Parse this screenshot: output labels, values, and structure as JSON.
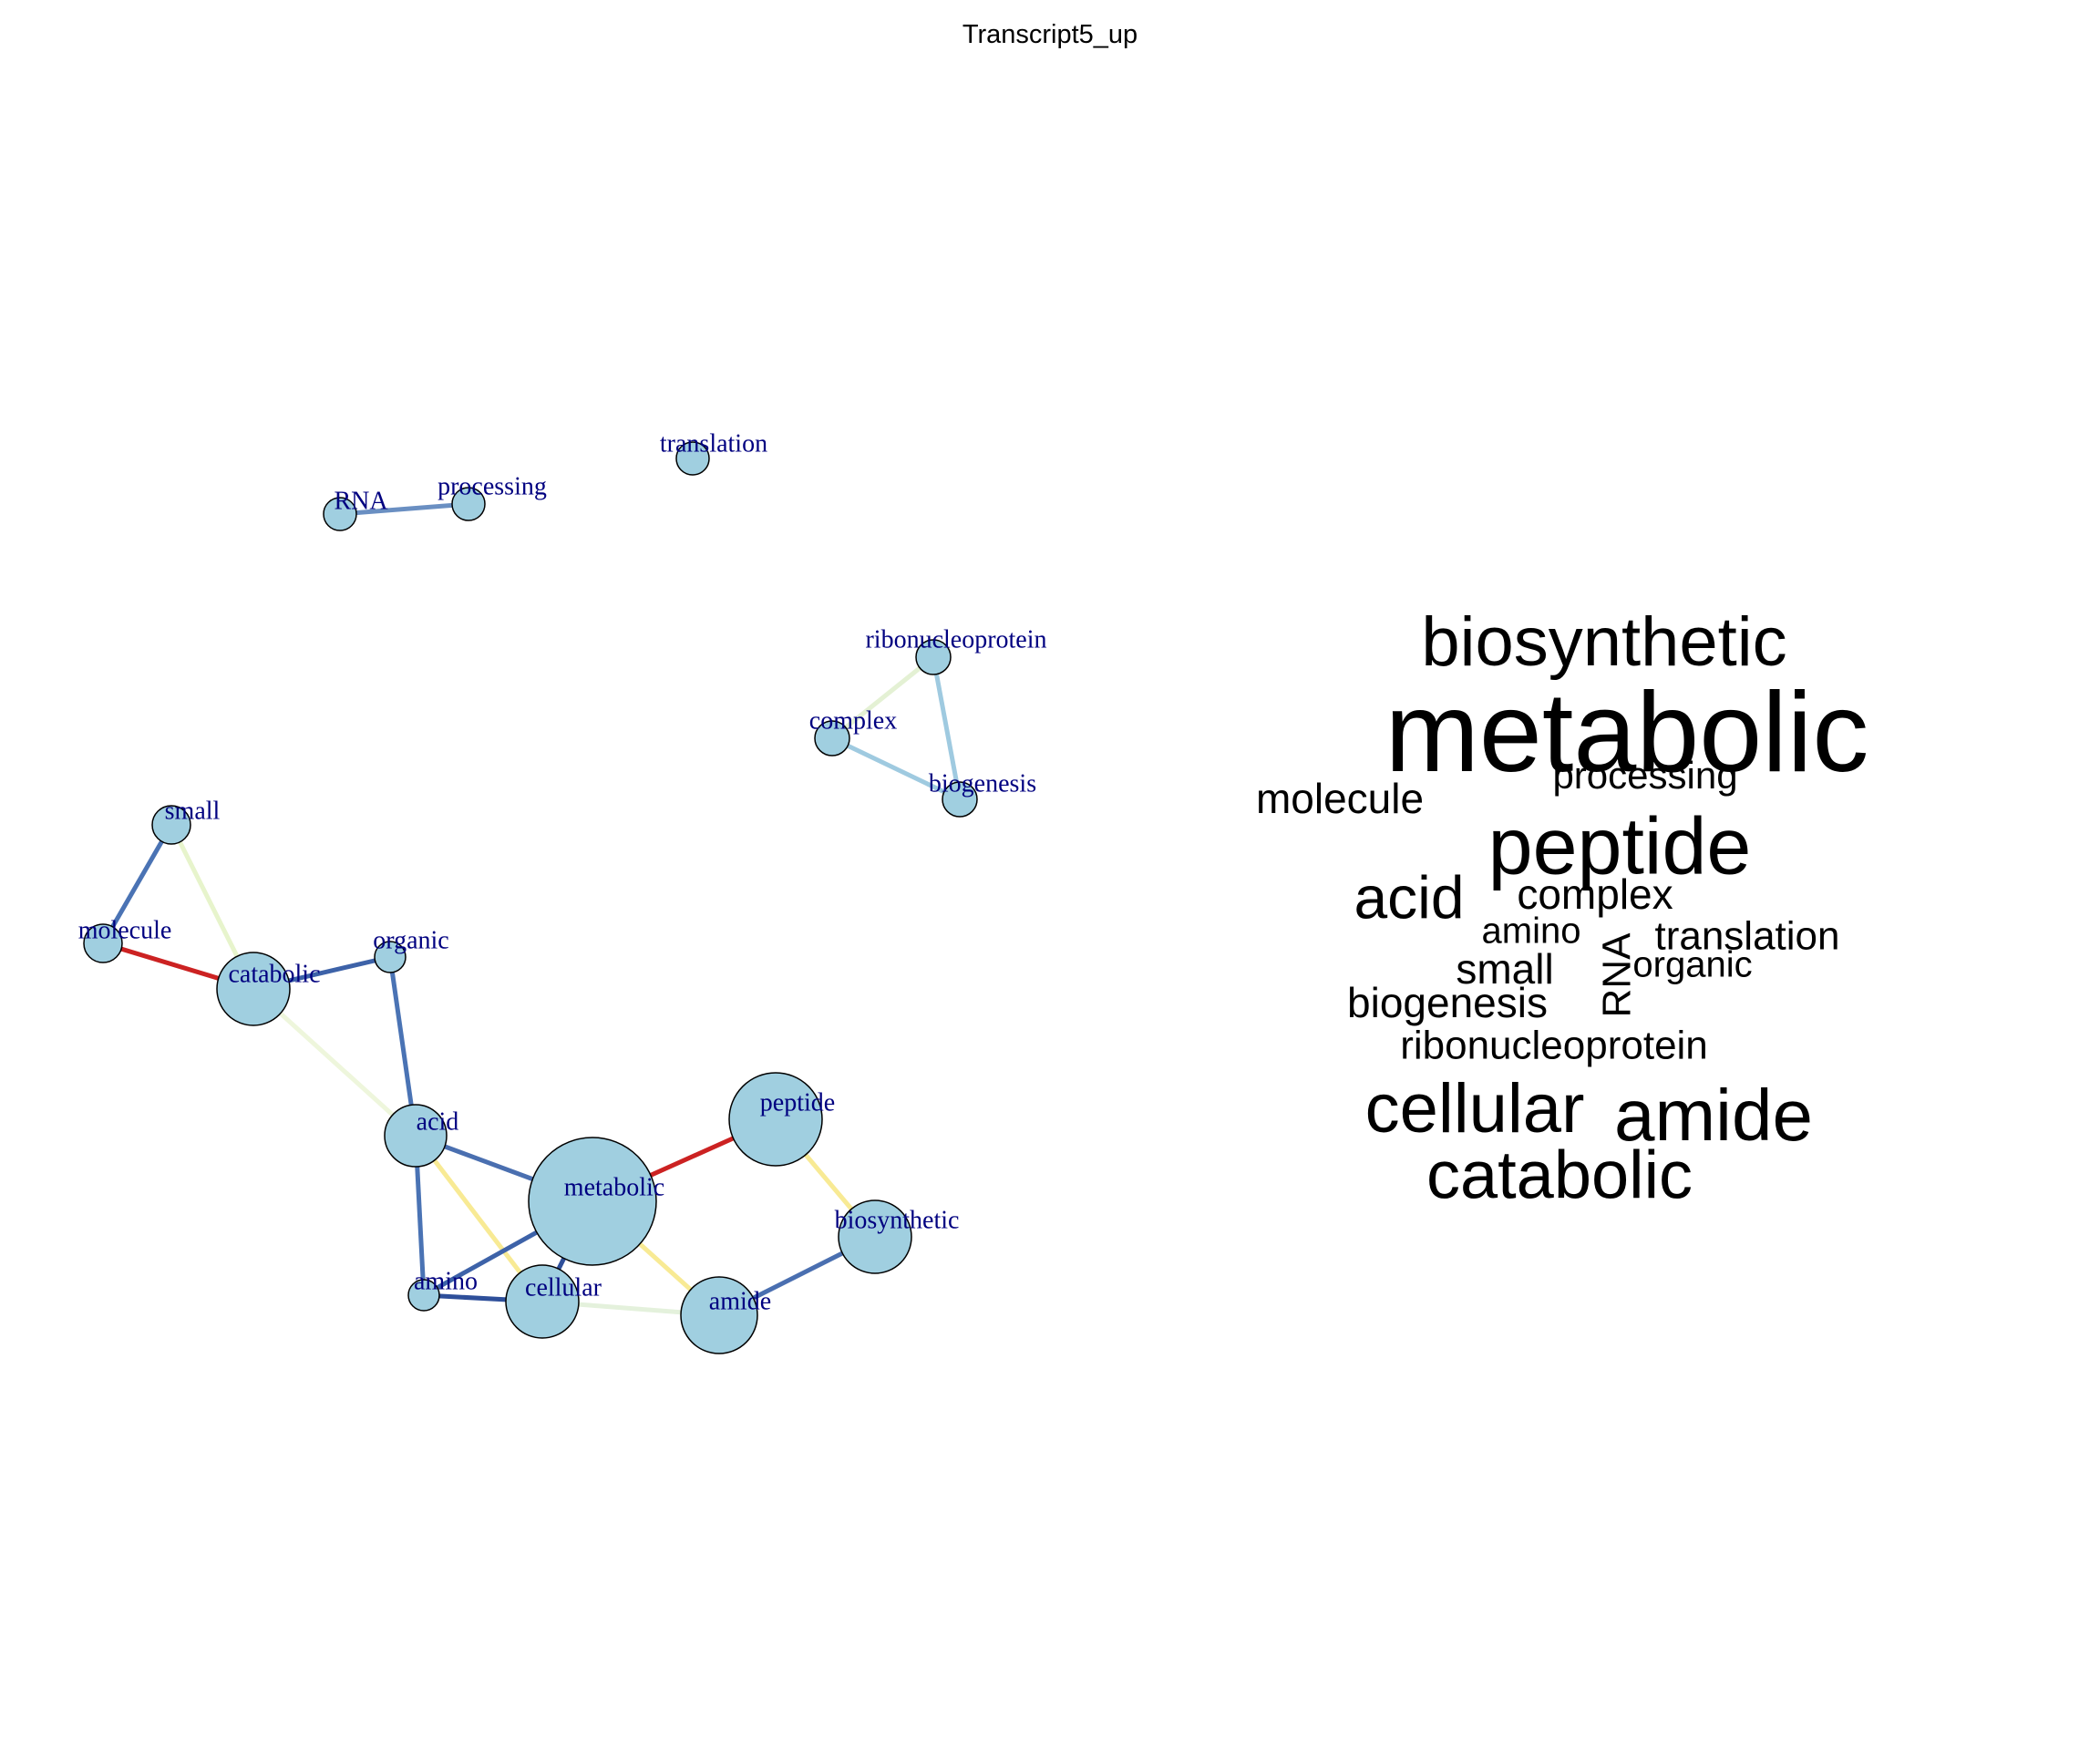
{
  "title": "Transcript5_up",
  "network": {
    "nodes": [
      {
        "id": "RNA",
        "label": "RNA"
      },
      {
        "id": "processing",
        "label": "processing"
      },
      {
        "id": "translation",
        "label": "translation"
      },
      {
        "id": "ribonucleoprotein",
        "label": "ribonucleoprotein"
      },
      {
        "id": "complex",
        "label": "complex"
      },
      {
        "id": "biogenesis",
        "label": "biogenesis"
      },
      {
        "id": "small",
        "label": "small"
      },
      {
        "id": "molecule",
        "label": "molecule"
      },
      {
        "id": "catabolic",
        "label": "catabolic"
      },
      {
        "id": "organic",
        "label": "organic"
      },
      {
        "id": "acid",
        "label": "acid"
      },
      {
        "id": "metabolic",
        "label": "metabolic"
      },
      {
        "id": "peptide",
        "label": "peptide"
      },
      {
        "id": "biosynthetic",
        "label": "biosynthetic"
      },
      {
        "id": "amino",
        "label": "amino"
      },
      {
        "id": "cellular",
        "label": "cellular"
      },
      {
        "id": "amide",
        "label": "amide"
      }
    ],
    "edges": [
      {
        "source": "RNA",
        "target": "processing",
        "color": "#6a8fc2"
      },
      {
        "source": "ribonucleoprotein",
        "target": "complex",
        "color": "#e4f1d4"
      },
      {
        "source": "ribonucleoprotein",
        "target": "biogenesis",
        "color": "#9fcae0"
      },
      {
        "source": "complex",
        "target": "biogenesis",
        "color": "#9fcae0"
      },
      {
        "source": "small",
        "target": "molecule",
        "color": "#4a73b4"
      },
      {
        "source": "small",
        "target": "catabolic",
        "color": "#e7f4cc"
      },
      {
        "source": "molecule",
        "target": "catabolic",
        "color": "#cc2222"
      },
      {
        "source": "catabolic",
        "target": "organic",
        "color": "#3d62a8"
      },
      {
        "source": "catabolic",
        "target": "acid",
        "color": "#eef6dc"
      },
      {
        "source": "organic",
        "target": "acid",
        "color": "#4a73b4"
      },
      {
        "source": "acid",
        "target": "metabolic",
        "color": "#4a6fb0"
      },
      {
        "source": "acid",
        "target": "amino",
        "color": "#4a73b4"
      },
      {
        "source": "acid",
        "target": "cellular",
        "color": "#f8ea94"
      },
      {
        "source": "metabolic",
        "target": "peptide",
        "color": "#cc2222"
      },
      {
        "source": "metabolic",
        "target": "amino",
        "color": "#3d62a8"
      },
      {
        "source": "metabolic",
        "target": "cellular",
        "color": "#2e4f9a"
      },
      {
        "source": "metabolic",
        "target": "amide",
        "color": "#f8ea94"
      },
      {
        "source": "peptide",
        "target": "biosynthetic",
        "color": "#f8ea94"
      },
      {
        "source": "amino",
        "target": "cellular",
        "color": "#2e4f9a"
      },
      {
        "source": "cellular",
        "target": "amide",
        "color": "#e4f1dc"
      },
      {
        "source": "amide",
        "target": "biosynthetic",
        "color": "#4a6fb0"
      }
    ],
    "node_fill": "#a0cfe0",
    "node_stroke": "#000000",
    "label_color": "#000080"
  },
  "word_cloud": [
    {
      "word": "biosynthetic"
    },
    {
      "word": "metabolic"
    },
    {
      "word": "molecule"
    },
    {
      "word": "processing"
    },
    {
      "word": "peptide"
    },
    {
      "word": "acid"
    },
    {
      "word": "complex"
    },
    {
      "word": "amino"
    },
    {
      "word": "translation"
    },
    {
      "word": "small"
    },
    {
      "word": "organic"
    },
    {
      "word": "RNA"
    },
    {
      "word": "biogenesis"
    },
    {
      "word": "ribonucleoprotein"
    },
    {
      "word": "cellular"
    },
    {
      "word": "amide"
    },
    {
      "word": "catabolic"
    }
  ]
}
